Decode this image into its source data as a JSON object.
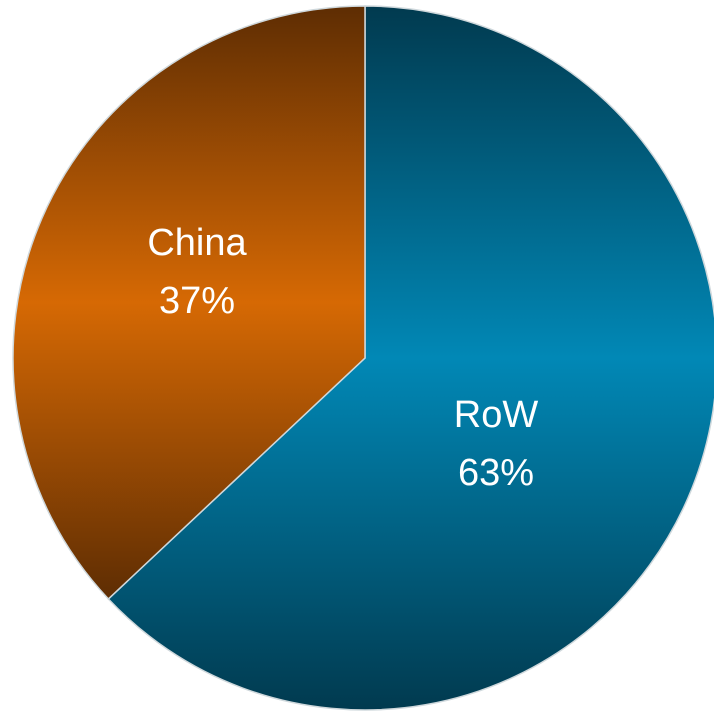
{
  "chart_data": {
    "type": "pie",
    "title": "",
    "slices": [
      {
        "label": "RoW",
        "value": 63,
        "percent_label": "63%",
        "gradient": {
          "edge": "#013a4f",
          "center": "#0188b6"
        }
      },
      {
        "label": "China",
        "value": 37,
        "percent_label": "37%",
        "gradient": {
          "edge": "#5e2d03",
          "center": "#d66904"
        }
      }
    ],
    "start_angle": "12 o'clock",
    "direction": "clockwise",
    "legend": "none",
    "slice_border_color": "#cfd8dc"
  }
}
